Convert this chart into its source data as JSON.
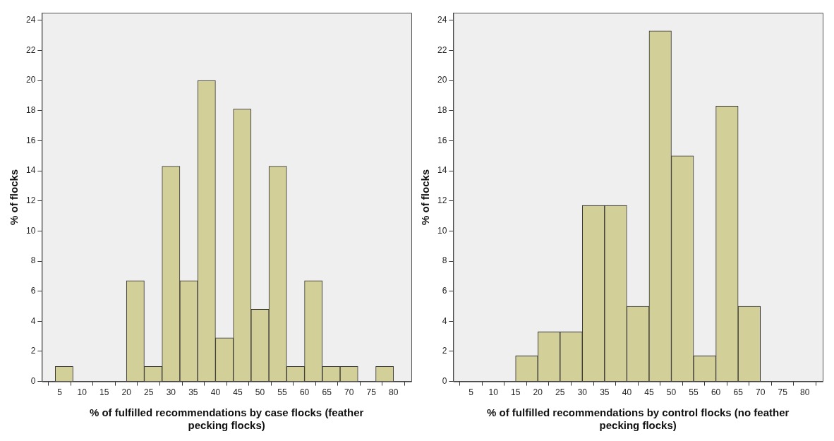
{
  "chart_data": [
    {
      "type": "histogram",
      "xlabel": "% of fulfilled recommendations by case flocks (feather pecking flocks)",
      "ylabel": "% of flocks",
      "bins": [
        4,
        8,
        12,
        16,
        20,
        24,
        28,
        32,
        36,
        40,
        44,
        48,
        52,
        56,
        60,
        64,
        68,
        72,
        76,
        80
      ],
      "values": [
        1,
        0,
        0,
        0,
        6.7,
        1,
        14.3,
        6.7,
        20,
        2.9,
        18.1,
        4.8,
        14.3,
        1,
        6.7,
        1,
        1,
        0,
        1
      ],
      "color": "#d3cf98",
      "xlim": [
        1,
        84
      ],
      "xticks": [
        5,
        10,
        15,
        20,
        25,
        30,
        35,
        40,
        45,
        50,
        55,
        60,
        65,
        70,
        75,
        80
      ],
      "ylim": [
        0,
        24.5
      ],
      "yticks": [
        0,
        2,
        4,
        6,
        8,
        10,
        12,
        14,
        16,
        18,
        20,
        22,
        24
      ],
      "grid": false,
      "legend": false
    },
    {
      "type": "histogram",
      "xlabel": "% of fulfilled recommendations by control flocks (no feather pecking flocks)",
      "ylabel": "% of flocks",
      "bins": [
        15,
        20,
        25,
        30,
        35,
        40,
        45,
        50,
        55,
        60,
        65,
        70
      ],
      "values": [
        1.7,
        3.3,
        3.3,
        11.7,
        11.7,
        5,
        23.3,
        15,
        1.7,
        18.3,
        5
      ],
      "color": "#d3cf98",
      "xlim": [
        1,
        84
      ],
      "xticks": [
        5,
        10,
        15,
        20,
        25,
        30,
        35,
        40,
        45,
        50,
        55,
        60,
        65,
        70,
        75,
        80
      ],
      "ylim": [
        0,
        24.5
      ],
      "yticks": [
        0,
        2,
        4,
        6,
        8,
        10,
        12,
        14,
        16,
        18,
        20,
        22,
        24
      ],
      "grid": false,
      "legend": false
    }
  ]
}
